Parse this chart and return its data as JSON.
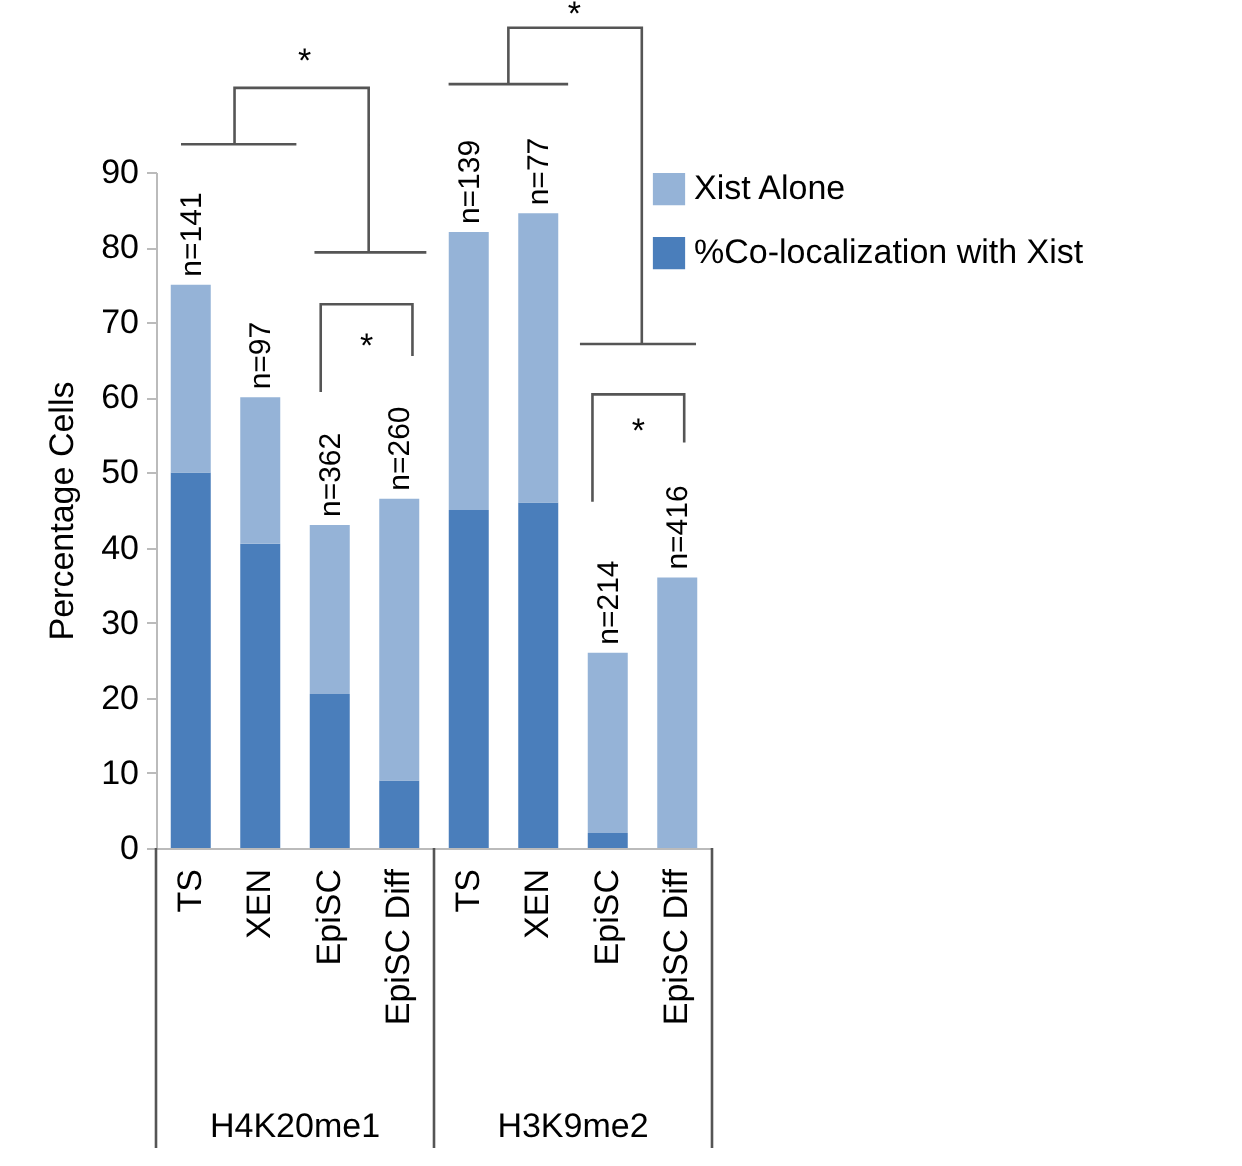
{
  "chart_data": {
    "type": "bar",
    "stacked": true,
    "categories": [
      "TS",
      "XEN",
      "EpiSC",
      "EpiSC Diff",
      "TS",
      "XEN",
      "EpiSC",
      "EpiSC Diff"
    ],
    "series": [
      {
        "name": "%Co-localization with Xist",
        "color": "#4a7ebb",
        "values": [
          50,
          40.5,
          20.5,
          9,
          45,
          46,
          2,
          0
        ]
      },
      {
        "name": "Xist Alone",
        "color": "#95b3d7",
        "values": [
          25,
          19.5,
          22.5,
          37.5,
          37,
          38.5,
          24,
          36
        ]
      }
    ],
    "ylabel": "Percentage Cells",
    "ylim": [
      0,
      90
    ],
    "yticks": [
      0,
      10,
      20,
      30,
      40,
      50,
      60,
      70,
      80,
      90
    ],
    "grid": false,
    "legend": "top right",
    "annotations": [
      "*",
      "*",
      "*",
      "*",
      "H4K20me1",
      "H3K9me2",
      "n=141",
      "n=97",
      "n=362",
      "n=260",
      "n=139",
      "n=77",
      "n=214",
      "n=416"
    ]
  }
}
